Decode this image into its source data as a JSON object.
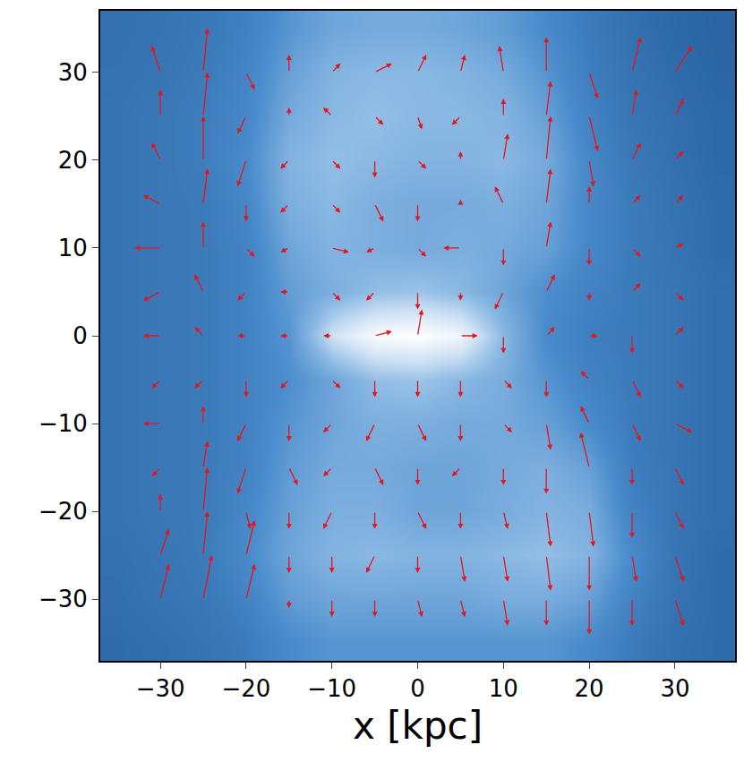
{
  "chart_data": {
    "type": "heatmap",
    "xlabel": "x [kpc]",
    "xlim": [
      -37,
      37
    ],
    "ylim": [
      -37,
      37
    ],
    "xticks": [
      {
        "value": -30,
        "label": "−30"
      },
      {
        "value": -20,
        "label": "−20"
      },
      {
        "value": -10,
        "label": "−10"
      },
      0,
      10,
      20,
      30
    ],
    "yticks": [
      {
        "value": -30,
        "label": "−30"
      },
      {
        "value": -20,
        "label": "−20"
      },
      {
        "value": -10,
        "label": "−10"
      },
      0,
      10,
      20,
      30
    ],
    "grid": false,
    "cells": {
      "x": [
        -35,
        -30,
        -25,
        -20,
        -15,
        -10,
        -5,
        0,
        5,
        10,
        15,
        20,
        25,
        30,
        35
      ],
      "y": [
        -35,
        -30,
        -25,
        -20,
        -15,
        -10,
        -5,
        0,
        5,
        10,
        15,
        20,
        25,
        30,
        35
      ],
      "z": [
        [
          0.3,
          0.32,
          0.35,
          0.4,
          0.5,
          0.55,
          0.55,
          0.55,
          0.55,
          0.55,
          0.55,
          0.5,
          0.4,
          0.33,
          0.3
        ],
        [
          0.32,
          0.35,
          0.38,
          0.45,
          0.58,
          0.62,
          0.62,
          0.62,
          0.62,
          0.65,
          0.65,
          0.6,
          0.45,
          0.35,
          0.3
        ],
        [
          0.33,
          0.36,
          0.4,
          0.5,
          0.62,
          0.68,
          0.7,
          0.68,
          0.68,
          0.7,
          0.72,
          0.68,
          0.5,
          0.36,
          0.3
        ],
        [
          0.35,
          0.38,
          0.4,
          0.48,
          0.6,
          0.66,
          0.66,
          0.62,
          0.62,
          0.65,
          0.68,
          0.65,
          0.45,
          0.36,
          0.32
        ],
        [
          0.35,
          0.38,
          0.4,
          0.45,
          0.58,
          0.64,
          0.64,
          0.62,
          0.62,
          0.64,
          0.66,
          0.6,
          0.42,
          0.36,
          0.32
        ],
        [
          0.35,
          0.38,
          0.4,
          0.45,
          0.55,
          0.62,
          0.66,
          0.66,
          0.64,
          0.64,
          0.6,
          0.5,
          0.4,
          0.36,
          0.32
        ],
        [
          0.35,
          0.38,
          0.4,
          0.45,
          0.52,
          0.62,
          0.72,
          0.74,
          0.7,
          0.65,
          0.55,
          0.45,
          0.4,
          0.36,
          0.32
        ],
        [
          0.35,
          0.38,
          0.4,
          0.45,
          0.55,
          0.85,
          0.98,
          1.0,
          0.95,
          0.7,
          0.5,
          0.42,
          0.4,
          0.36,
          0.32
        ],
        [
          0.35,
          0.38,
          0.4,
          0.45,
          0.58,
          0.66,
          0.72,
          0.74,
          0.7,
          0.62,
          0.52,
          0.45,
          0.4,
          0.36,
          0.32
        ],
        [
          0.35,
          0.38,
          0.4,
          0.45,
          0.62,
          0.68,
          0.66,
          0.64,
          0.66,
          0.64,
          0.6,
          0.48,
          0.4,
          0.35,
          0.3
        ],
        [
          0.35,
          0.38,
          0.4,
          0.48,
          0.66,
          0.7,
          0.66,
          0.64,
          0.64,
          0.66,
          0.62,
          0.48,
          0.4,
          0.34,
          0.3
        ],
        [
          0.35,
          0.38,
          0.42,
          0.5,
          0.68,
          0.72,
          0.7,
          0.68,
          0.68,
          0.7,
          0.64,
          0.48,
          0.38,
          0.33,
          0.28
        ],
        [
          0.35,
          0.38,
          0.42,
          0.48,
          0.64,
          0.7,
          0.72,
          0.7,
          0.7,
          0.68,
          0.6,
          0.45,
          0.36,
          0.32,
          0.28
        ],
        [
          0.34,
          0.36,
          0.4,
          0.46,
          0.6,
          0.68,
          0.7,
          0.7,
          0.68,
          0.64,
          0.55,
          0.42,
          0.35,
          0.3,
          0.26
        ],
        [
          0.33,
          0.35,
          0.38,
          0.44,
          0.55,
          0.62,
          0.64,
          0.64,
          0.62,
          0.58,
          0.5,
          0.4,
          0.33,
          0.28,
          0.25
        ]
      ]
    },
    "vectors": {
      "color": "#e8141c",
      "x": [
        -30,
        -25,
        -20,
        -15,
        -10,
        -5,
        0,
        5,
        10,
        15,
        20,
        25,
        30
      ],
      "y": [
        -30,
        -25,
        -20,
        -15,
        -10,
        -5,
        0,
        5,
        10,
        15,
        20,
        25,
        30
      ],
      "u": [
        [
          1,
          1,
          1,
          0,
          0,
          0,
          0.5,
          0.5,
          0.5,
          0,
          0,
          0,
          1
        ],
        [
          1,
          0.5,
          1,
          0,
          0,
          -1,
          0,
          0.5,
          0.5,
          0.5,
          0,
          0.5,
          1
        ],
        [
          0,
          0.5,
          0.5,
          0,
          -1,
          0,
          1,
          0,
          0.5,
          0.5,
          0.5,
          0,
          1
        ],
        [
          -1,
          0.5,
          -1,
          1,
          -1,
          1,
          0,
          -1,
          0,
          0,
          -1,
          0,
          1
        ],
        [
          -2,
          0,
          -1,
          0,
          -1,
          -1,
          1,
          0,
          1,
          0.5,
          -1,
          1,
          2
        ],
        [
          -1,
          -1,
          0,
          -1,
          1,
          0,
          0,
          0,
          1,
          0,
          -1,
          1,
          1
        ],
        [
          -2,
          -1,
          -1,
          -1,
          -1,
          2,
          0.5,
          2,
          0,
          1,
          1,
          0,
          1
        ],
        [
          -2,
          -1,
          -1,
          -1,
          1,
          -1,
          0,
          0,
          -1,
          1,
          0,
          1,
          1
        ],
        [
          -3,
          0,
          1,
          -1,
          2,
          -1,
          1,
          -2,
          0,
          0.5,
          0,
          1,
          1
        ],
        [
          -2,
          0.5,
          0,
          -1,
          1,
          1,
          0,
          0,
          -1,
          0.5,
          0,
          1,
          1
        ],
        [
          -1,
          0,
          -1,
          -1,
          1,
          0,
          1,
          0,
          0.5,
          0.5,
          0.5,
          1,
          1
        ],
        [
          0,
          0.5,
          -1,
          0,
          -1,
          1,
          0.5,
          -1,
          0,
          0.5,
          1,
          0.5,
          1
        ],
        [
          -1,
          0.5,
          1,
          0,
          1,
          2,
          1,
          0.5,
          -0.5,
          0,
          1,
          1,
          2
        ]
      ],
      "v": [
        [
          4,
          5,
          4,
          -1,
          -2,
          -2,
          -2,
          -2,
          -3,
          -3,
          -4,
          -3,
          -3
        ],
        [
          3,
          5,
          4,
          -2,
          -2,
          -2,
          -2,
          -3,
          -3,
          -4,
          -4,
          -3,
          -3
        ],
        [
          2,
          5,
          -2,
          -2,
          -2,
          -2,
          -2,
          -2,
          -2,
          -4,
          -4,
          -3,
          -2
        ],
        [
          -1,
          3,
          -3,
          -2,
          -1,
          -2,
          -2,
          -1,
          -2,
          -3,
          4,
          -2,
          -2
        ],
        [
          0,
          2,
          -2,
          -2,
          -1,
          -2,
          -2,
          -2,
          -1,
          -3,
          2,
          -2,
          -1
        ],
        [
          -1,
          -1,
          -2,
          -1,
          -1,
          -2,
          -2,
          -2,
          -1,
          -2,
          1,
          -2,
          -1
        ],
        [
          0,
          1,
          0,
          0,
          0,
          0.5,
          3,
          0,
          -2,
          1,
          0,
          -2,
          1
        ],
        [
          -1,
          2,
          -1,
          0,
          -1,
          -1,
          -2,
          -1,
          -2,
          2,
          -1,
          1,
          -1
        ],
        [
          0,
          3,
          -1,
          -0.5,
          -0.5,
          -0.5,
          -1,
          0,
          -2,
          3,
          -2,
          -1,
          0.5
        ],
        [
          1,
          4,
          -2,
          -1,
          -1,
          -2,
          -2,
          0.5,
          2,
          4,
          2,
          1,
          1
        ],
        [
          2,
          5,
          -3,
          -1,
          -1,
          -2,
          -1,
          1,
          3,
          5,
          -3,
          2,
          1
        ],
        [
          3,
          5,
          -2,
          1,
          1,
          -1,
          -1.5,
          -1,
          2,
          4,
          -4,
          3,
          2
        ],
        [
          3,
          5,
          -2,
          2,
          1,
          1,
          2,
          2,
          3,
          4,
          -3,
          4,
          3
        ]
      ]
    }
  }
}
